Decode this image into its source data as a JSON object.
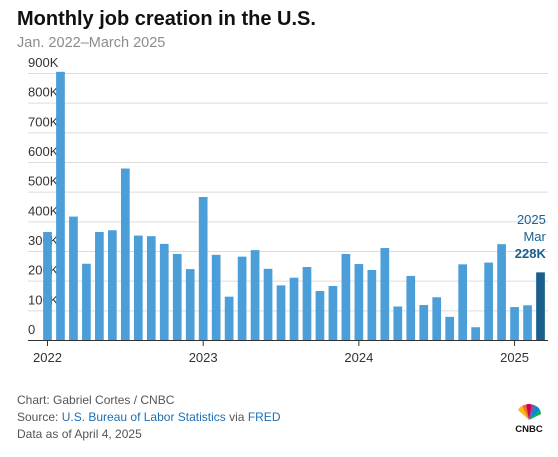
{
  "chart_data": {
    "type": "bar",
    "title": "Monthly job creation in the U.S.",
    "subtitle": "Jan. 2022–March 2025",
    "xlabel": "",
    "ylabel": "",
    "ylim": [
      0,
      900000
    ],
    "grid": true,
    "y_ticks": [
      "0",
      "100K",
      "200K",
      "300K",
      "400K",
      "500K",
      "600K",
      "700K",
      "800K",
      "900K"
    ],
    "x_ticks": [
      {
        "label": "2022",
        "index": 0
      },
      {
        "label": "2023",
        "index": 12
      },
      {
        "label": "2024",
        "index": 24
      },
      {
        "label": "2025",
        "index": 36
      }
    ],
    "categories": [
      "Jan 2022",
      "Feb 2022",
      "Mar 2022",
      "Apr 2022",
      "May 2022",
      "Jun 2022",
      "Jul 2022",
      "Aug 2022",
      "Sep 2022",
      "Oct 2022",
      "Nov 2022",
      "Dec 2022",
      "Jan 2023",
      "Feb 2023",
      "Mar 2023",
      "Apr 2023",
      "May 2023",
      "Jun 2023",
      "Jul 2023",
      "Aug 2023",
      "Sep 2023",
      "Oct 2023",
      "Nov 2023",
      "Dec 2023",
      "Jan 2024",
      "Feb 2024",
      "Mar 2024",
      "Apr 2024",
      "May 2024",
      "Jun 2024",
      "Jul 2024",
      "Aug 2024",
      "Sep 2024",
      "Oct 2024",
      "Nov 2024",
      "Dec 2024",
      "Jan 2025",
      "Feb 2025",
      "Mar 2025"
    ],
    "values": [
      364000,
      904000,
      416000,
      257000,
      364000,
      370000,
      578000,
      352000,
      350000,
      324000,
      290000,
      239000,
      482000,
      287000,
      146000,
      281000,
      303000,
      240000,
      184000,
      210000,
      246000,
      165000,
      182000,
      290000,
      256000,
      236000,
      310000,
      113000,
      216000,
      118000,
      144000,
      78000,
      255000,
      43000,
      261000,
      323000,
      111000,
      117000,
      228000
    ],
    "bar_color": "#4c9ed9",
    "highlight_color": "#1a5f8e",
    "highlight_index": 38,
    "annotation": {
      "line1": "2025",
      "line2": "Mar",
      "value": "228K"
    }
  },
  "footer": {
    "chart_credit": "Chart: Gabriel Cortes / CNBC",
    "source_prefix": "Source: ",
    "source_link1": "U.S. Bureau of Labor Statistics",
    "source_mid": " via ",
    "source_link2": "FRED",
    "data_as_of": "Data as of April 4, 2025"
  },
  "logo": {
    "text": "CNBC",
    "icon": "peacock-icon"
  },
  "colors": {
    "grid": "#dcdcdc",
    "axis": "#333333",
    "link": "#1f6fb2"
  }
}
